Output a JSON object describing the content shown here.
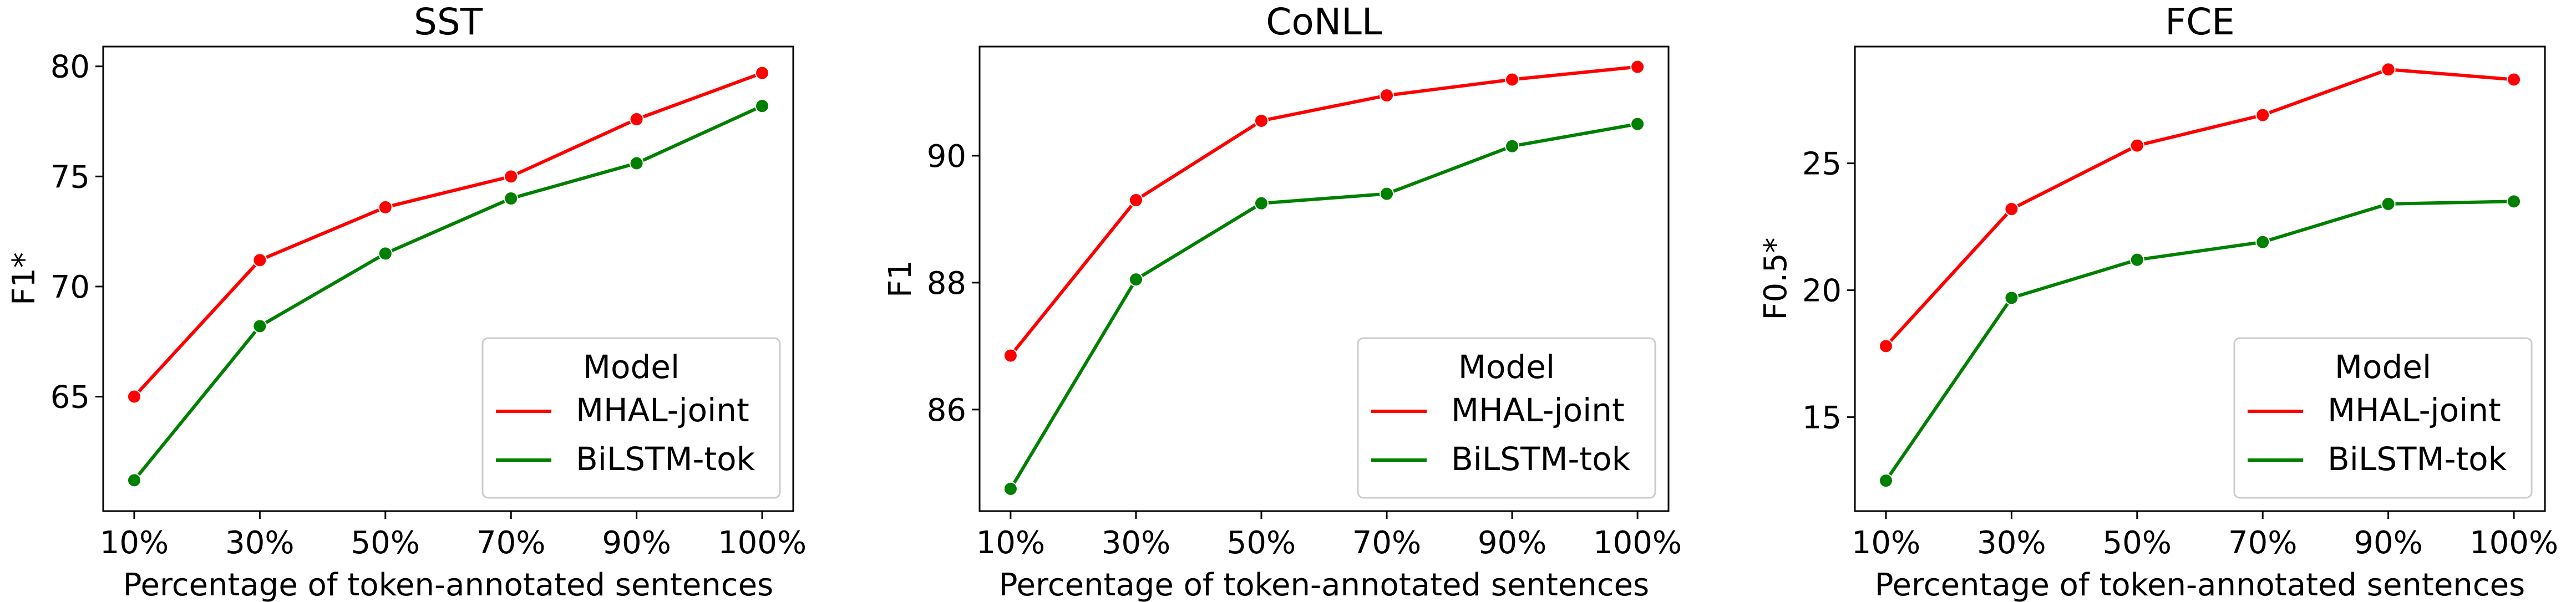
{
  "colors": {
    "MHAL-joint": "#ff0000",
    "BiLSTM-tok": "#008000"
  },
  "chart_data": [
    {
      "type": "line",
      "title": "SST",
      "xlabel": "Percentage of token-annotated sentences",
      "ylabel": "F1*",
      "categories": [
        "10%",
        "30%",
        "50%",
        "70%",
        "90%",
        "100%"
      ],
      "yticks": [
        65,
        70,
        75,
        80
      ],
      "ylim": [
        59.8,
        80.9
      ],
      "legend_title": "Model",
      "legend_position": "lower-right",
      "series": [
        {
          "name": "MHAL-joint",
          "values": [
            65.0,
            71.2,
            73.6,
            75.0,
            77.6,
            79.7
          ]
        },
        {
          "name": "BiLSTM-tok",
          "values": [
            61.2,
            68.2,
            71.5,
            74.0,
            75.6,
            78.2
          ]
        }
      ]
    },
    {
      "type": "line",
      "title": "CoNLL",
      "xlabel": "Percentage of token-annotated sentences",
      "ylabel": "F1",
      "categories": [
        "10%",
        "30%",
        "50%",
        "70%",
        "90%",
        "100%"
      ],
      "yticks": [
        86,
        88,
        90
      ],
      "ylim": [
        84.4,
        91.72
      ],
      "legend_title": "Model",
      "legend_position": "lower-right",
      "series": [
        {
          "name": "MHAL-joint",
          "values": [
            86.85,
            89.3,
            90.55,
            90.95,
            91.2,
            91.4
          ]
        },
        {
          "name": "BiLSTM-tok",
          "values": [
            84.75,
            88.05,
            89.25,
            89.4,
            90.15,
            90.5
          ]
        }
      ]
    },
    {
      "type": "line",
      "title": "FCE",
      "xlabel": "Percentage of token-annotated sentences",
      "ylabel": "F0.5*",
      "categories": [
        "10%",
        "30%",
        "50%",
        "70%",
        "90%",
        "100%"
      ],
      "yticks": [
        15,
        20,
        25
      ],
      "ylim": [
        11.3,
        29.6
      ],
      "legend_title": "Model",
      "legend_position": "lower-right",
      "series": [
        {
          "name": "MHAL-joint",
          "values": [
            17.8,
            23.2,
            25.7,
            26.9,
            28.7,
            28.3
          ]
        },
        {
          "name": "BiLSTM-tok",
          "values": [
            12.5,
            19.7,
            21.2,
            21.9,
            23.4,
            23.5
          ]
        }
      ]
    }
  ]
}
